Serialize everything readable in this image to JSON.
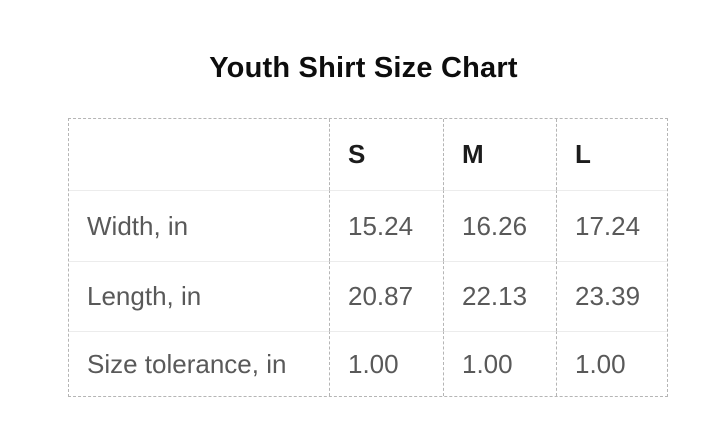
{
  "title": "Youth Shirt Size Chart",
  "table": {
    "columns": [
      "",
      "S",
      "M",
      "L"
    ],
    "rows": [
      {
        "label": "Width, in",
        "values": [
          "15.24",
          "16.26",
          "17.24"
        ]
      },
      {
        "label": "Length, in",
        "values": [
          "20.87",
          "22.13",
          "23.39"
        ]
      },
      {
        "label": "Size tolerance, in",
        "values": [
          "1.00",
          "1.00",
          "1.00"
        ]
      }
    ]
  },
  "colors": {
    "background": "#ffffff",
    "title_text": "#0d0d0d",
    "header_text": "#1c1c1c",
    "body_text": "#595959",
    "dashed_border": "#b5b5b5",
    "row_separator": "#ececec"
  },
  "chart_data": {
    "type": "table",
    "title": "Youth Shirt Size Chart",
    "columns": [
      "",
      "S",
      "M",
      "L"
    ],
    "rows": [
      [
        "Width, in",
        15.24,
        16.26,
        17.24
      ],
      [
        "Length, in",
        20.87,
        22.13,
        23.39
      ],
      [
        "Size tolerance, in",
        1.0,
        1.0,
        1.0
      ]
    ],
    "units": "in"
  }
}
